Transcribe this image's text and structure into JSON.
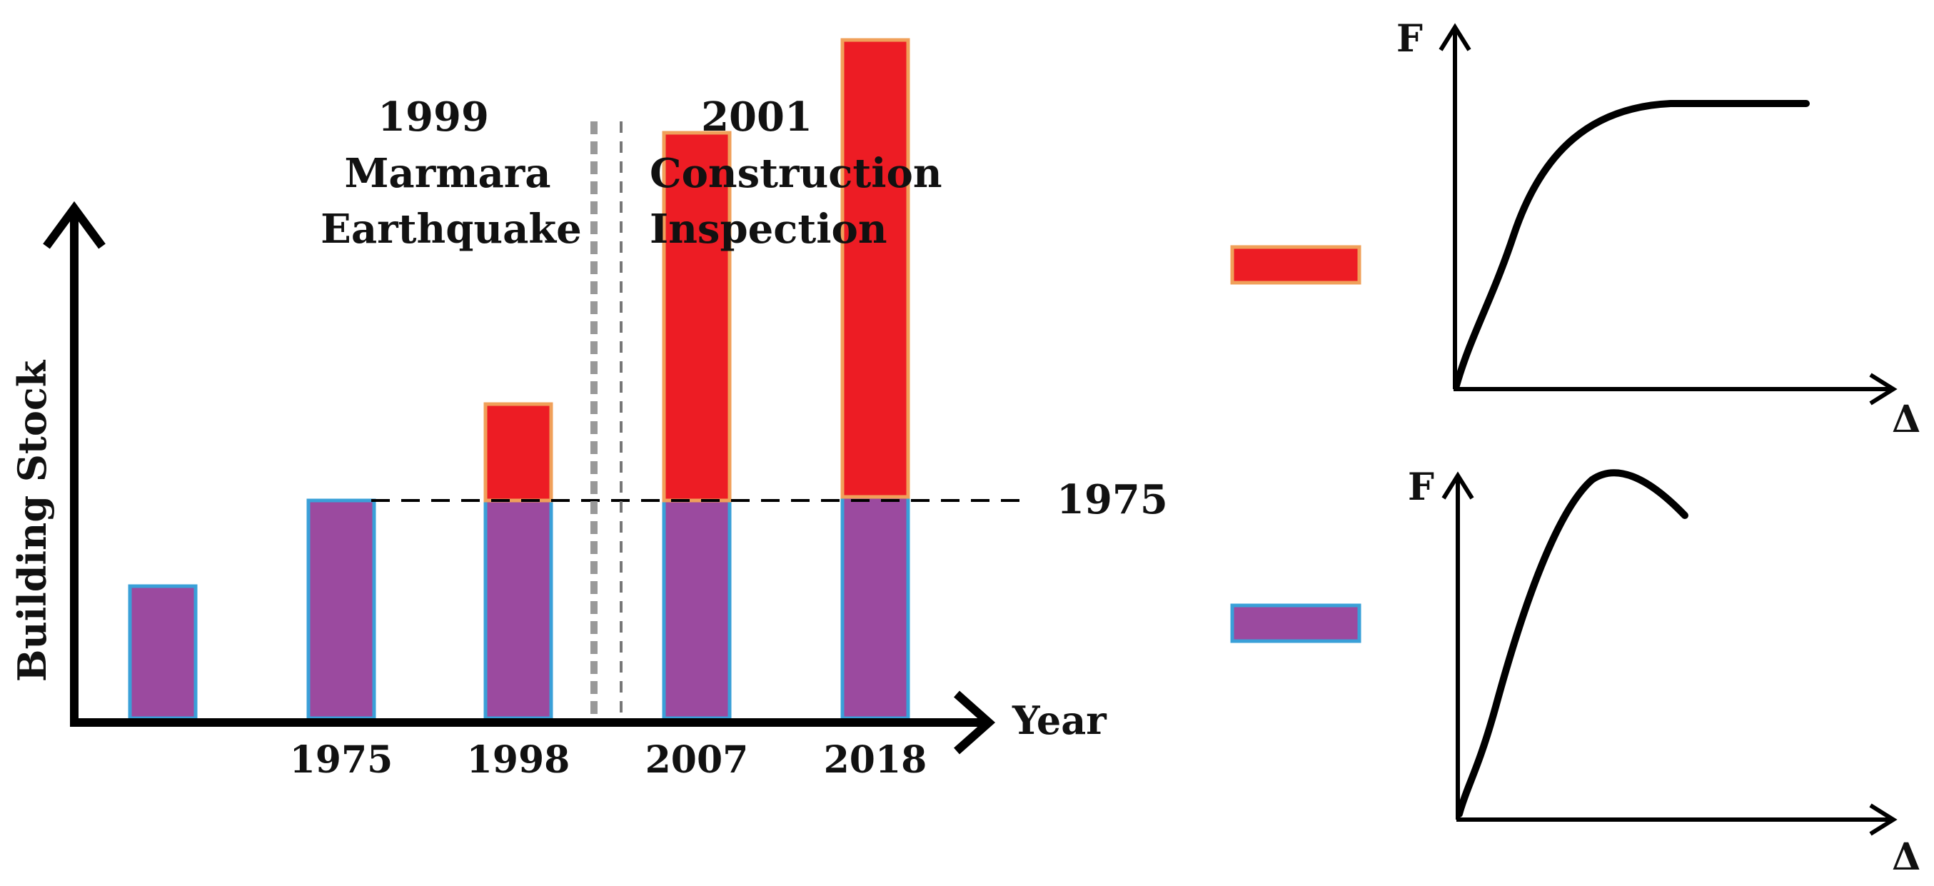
{
  "colors": {
    "ductile_fill": "#ed1c24",
    "ductile_border": "#f0a05a",
    "brittle_fill": "#9b4a9f",
    "brittle_border": "#3aa0d8",
    "ink": "#000000",
    "divider": "#999999"
  },
  "chart_data": {
    "type": "bar",
    "stacked": true,
    "ylabel": "Building Stock",
    "xlabel": "Year",
    "categories": [
      "",
      "1975",
      "1998",
      "2007",
      "2018"
    ],
    "series": [
      {
        "name": "brittle",
        "values": [
          0.37,
          0.61,
          0.61,
          0.61,
          0.62
        ]
      },
      {
        "name": "ductile",
        "values": [
          0,
          0,
          0.27,
          1.03,
          1.28
        ]
      }
    ],
    "reference_line": {
      "label": "1975",
      "value": 0.61
    },
    "ylim": [
      0,
      2.0
    ],
    "events": [
      {
        "year": "1999",
        "lines": [
          "Marmara",
          "Earthquake"
        ]
      },
      {
        "year": "2001",
        "lines": [
          "Construction",
          "Inspection"
        ]
      }
    ]
  },
  "legend": {
    "ductile": {
      "fy_label": "F",
      "dx_label": "Δ",
      "shape": "ductile-plateau"
    },
    "brittle": {
      "fy_label": "F",
      "dx_label": "Δ",
      "shape": "brittle-softening"
    }
  }
}
